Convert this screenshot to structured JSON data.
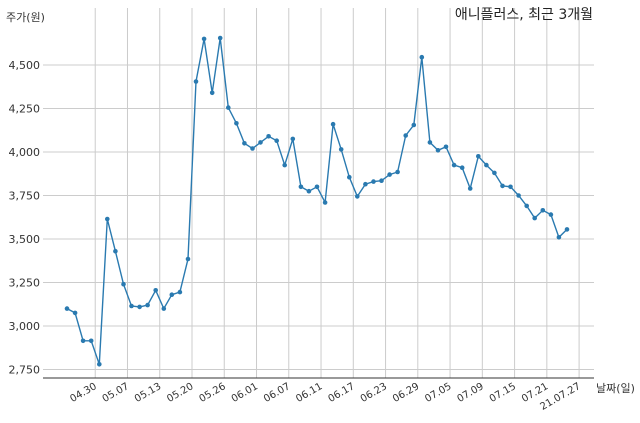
{
  "chart_data": {
    "type": "line",
    "title": "애니플러스, 최근 3개월",
    "ylabel": "주가(원)",
    "xlabel": "날짜(일)",
    "ylim": [
      2700,
      4750
    ],
    "yticks": [
      2750,
      3000,
      3250,
      3500,
      3750,
      4000,
      4250,
      4500
    ],
    "ytick_labels": [
      "2,750",
      "3,000",
      "3,250",
      "3,500",
      "3,750",
      "4,000",
      "4,250",
      "4,500"
    ],
    "xticks": [
      "04.30",
      "05.07",
      "05.13",
      "05.20",
      "05.26",
      "06.01",
      "06.07",
      "06.11",
      "06.17",
      "06.23",
      "06.29",
      "07.05",
      "07.09",
      "07.15",
      "07.21",
      "21.07.27"
    ],
    "xtick_index": [
      3.5,
      7.5,
      11.5,
      15.5,
      19.5,
      23.5,
      27.5,
      31.5,
      35.5,
      39.5,
      43.5,
      47.5,
      51.5,
      55.5,
      59.5,
      63.5
    ],
    "grid": true,
    "colors": {
      "line": "#2a7ab0",
      "grid": "#cccccc",
      "axis": "#333333"
    },
    "series": [
      {
        "values": [
          3100,
          3075,
          2915,
          2915,
          2780,
          3615,
          3430,
          3240,
          3115,
          3110,
          3120,
          3205,
          3100,
          3180,
          3195,
          3385,
          4405,
          4650,
          4340,
          4655,
          4255,
          4165,
          4050,
          4020,
          4055,
          4090,
          4065,
          3925,
          4075,
          3800,
          3775,
          3800,
          3710,
          4160,
          4015,
          3855,
          3745,
          3815,
          3830,
          3835,
          3870,
          3885,
          4095,
          4155,
          4545,
          4055,
          4010,
          4030,
          3925,
          3910,
          3790,
          3975,
          3925,
          3880,
          3805,
          3800,
          3750,
          3690,
          3620,
          3665,
          3640,
          3510,
          3555
        ]
      }
    ]
  }
}
